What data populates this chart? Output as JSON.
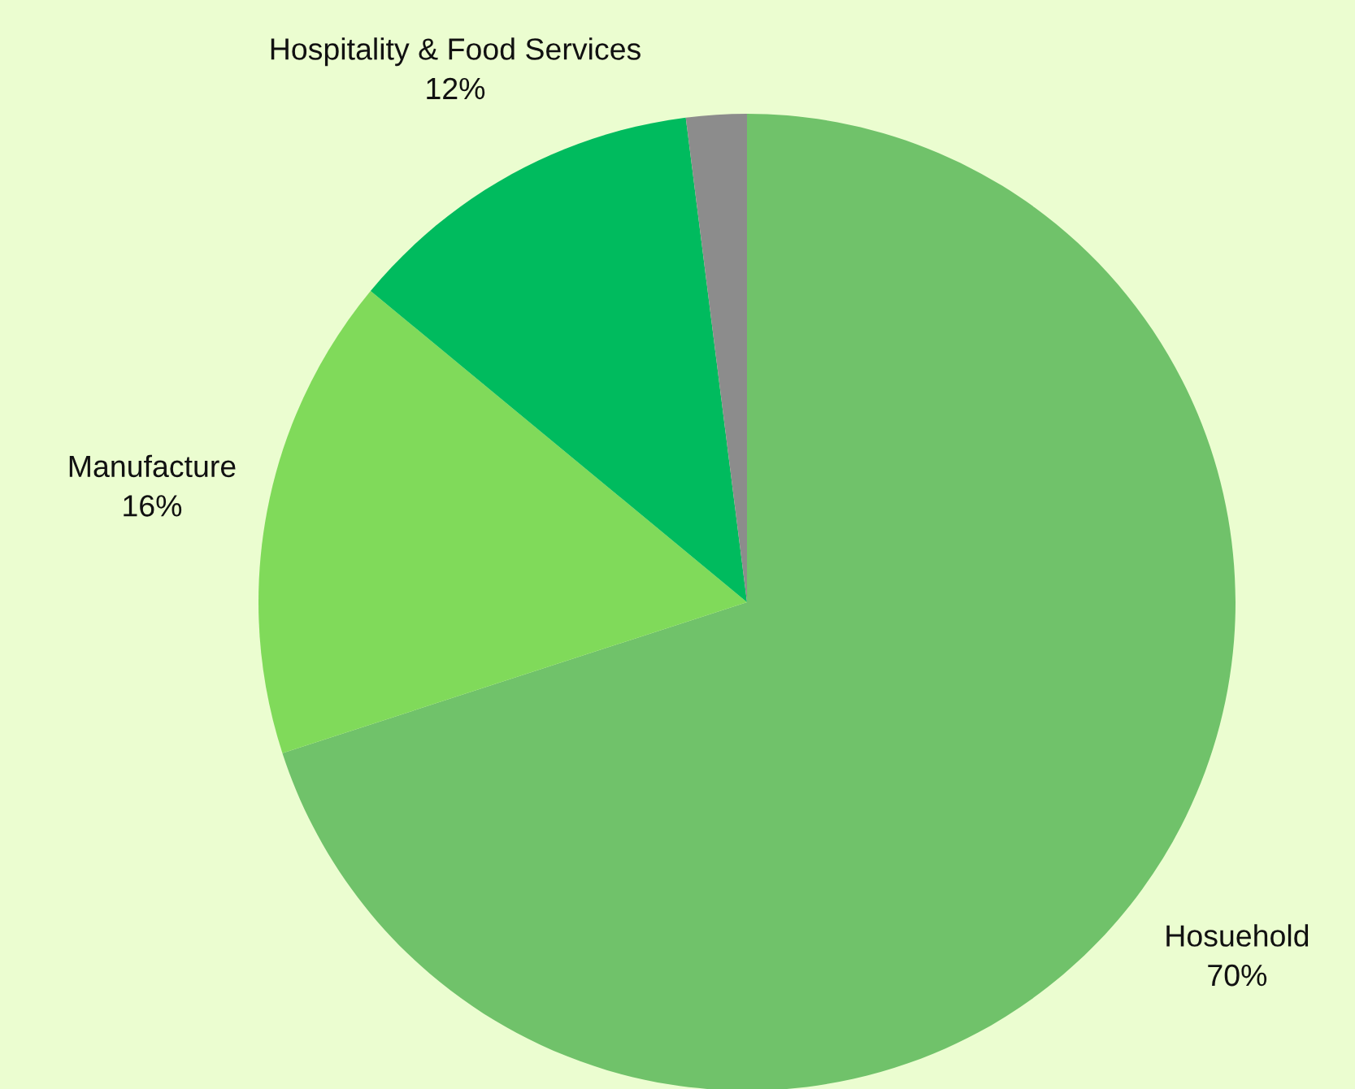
{
  "chart_data": {
    "type": "pie",
    "categories": [
      "Hosuehold",
      "Manufacture",
      "Hospitality & Food Services",
      null
    ],
    "values": [
      70,
      16,
      12,
      2
    ],
    "value_labels": [
      "70%",
      "16%",
      "12%",
      null
    ],
    "colors": [
      "#70c26a",
      "#80da5a",
      "#00bb5e",
      "#8c8c8c"
    ]
  }
}
